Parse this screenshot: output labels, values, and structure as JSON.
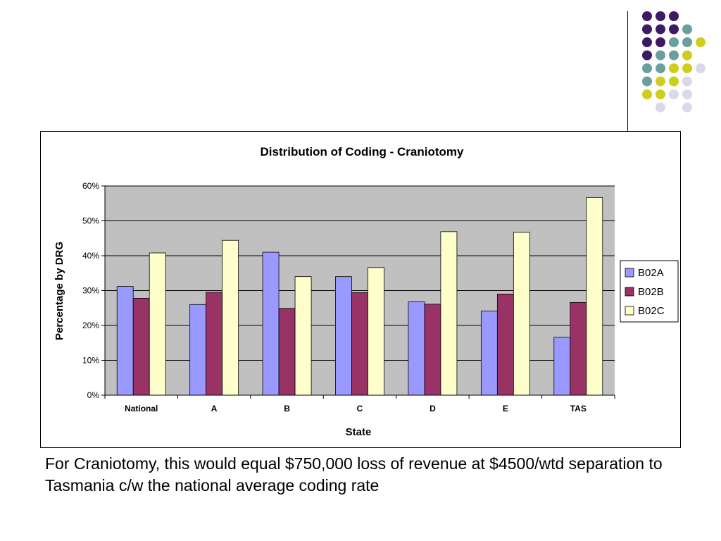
{
  "decor": {
    "dot_colors": {
      "purple": "#3d1a63",
      "teal": "#6a9fa0",
      "yellow": "#cfcd1e",
      "lavender": "#d9d9ea"
    },
    "dot_rows": [
      [
        "purple",
        "purple",
        "purple",
        "",
        "",
        ""
      ],
      [
        "purple",
        "purple",
        "purple",
        "teal",
        "",
        ""
      ],
      [
        "purple",
        "purple",
        "teal",
        "teal",
        "yellow",
        ""
      ],
      [
        "purple",
        "teal",
        "teal",
        "yellow",
        "",
        ""
      ],
      [
        "teal",
        "teal",
        "yellow",
        "yellow",
        "lavender",
        ""
      ],
      [
        "teal",
        "yellow",
        "yellow",
        "lavender",
        "",
        ""
      ],
      [
        "yellow",
        "yellow",
        "lavender",
        "lavender",
        "",
        ""
      ],
      [
        "",
        "lavender",
        "",
        "lavender",
        "",
        ""
      ]
    ]
  },
  "chart_data": {
    "type": "bar",
    "title": "Distribution of Coding - Craniotomy",
    "xlabel": "State",
    "ylabel": "Percentage by DRG",
    "categories": [
      "National",
      "A",
      "B",
      "C",
      "D",
      "E",
      "TAS"
    ],
    "series": [
      {
        "name": "B02A",
        "color": "#9999ff",
        "values": [
          31.2,
          26.0,
          41.0,
          34.0,
          26.8,
          24.1,
          16.6
        ]
      },
      {
        "name": "B02B",
        "color": "#993366",
        "values": [
          27.8,
          29.5,
          24.9,
          29.4,
          26.1,
          29.0,
          26.6
        ]
      },
      {
        "name": "B02C",
        "color": "#ffffcc",
        "values": [
          40.8,
          44.4,
          34.0,
          36.6,
          46.9,
          46.7,
          56.7
        ]
      }
    ],
    "ylim": [
      0,
      60
    ],
    "yticks": [
      "0%",
      "10%",
      "20%",
      "30%",
      "40%",
      "50%",
      "60%"
    ],
    "plot_background": "#c0c0c0",
    "grid": true,
    "legend_position": "right"
  },
  "caption": "For Craniotomy, this would equal $750,000 loss of revenue at $4500/wtd separation to Tasmania c/w the national average coding rate"
}
